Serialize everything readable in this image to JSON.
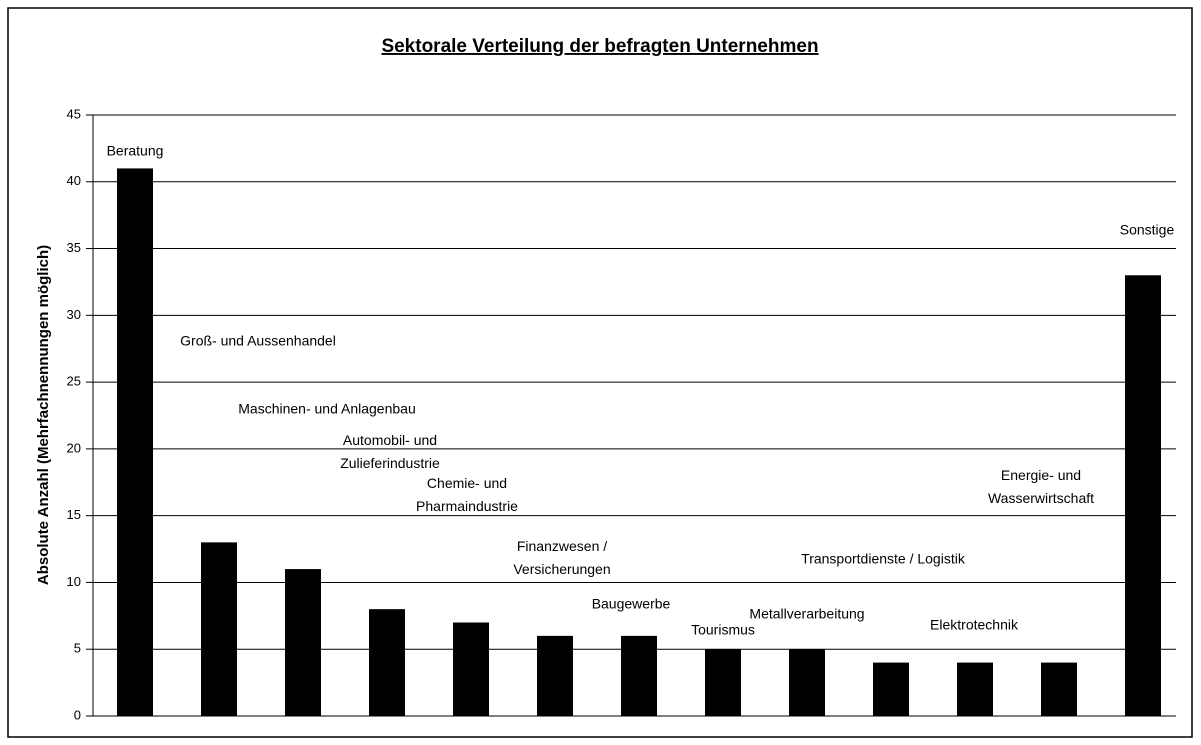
{
  "chart_data": {
    "type": "bar",
    "title": "Sektorale Verteilung der befragten Unternehmen",
    "y_label": "Absolute Anzahl (Mehrfachnennungen möglich)",
    "categories": [
      "Beratung",
      "Groß- und Aussenhandel",
      "Maschinen- und Anlagenbau",
      "Automobil- und\nZulieferindustrie",
      "Chemie- und\nPharmaindustrie",
      "Finanzwesen /\nVersicherungen",
      "Baugewerbe",
      "Tourismus",
      "Metallverarbeitung",
      "Transportdienste / Logistik",
      "Elektrotechnik",
      "Energie- und\nWasserwirtschaft",
      "Sonstige"
    ],
    "values": [
      41,
      13,
      11,
      8,
      7,
      6,
      6,
      5,
      5,
      4,
      4,
      4,
      33
    ],
    "color": "#000000",
    "ylim": [
      0,
      45
    ],
    "yticks": [
      0,
      5,
      10,
      15,
      20,
      25,
      30,
      35,
      40,
      45
    ],
    "grid": true
  }
}
